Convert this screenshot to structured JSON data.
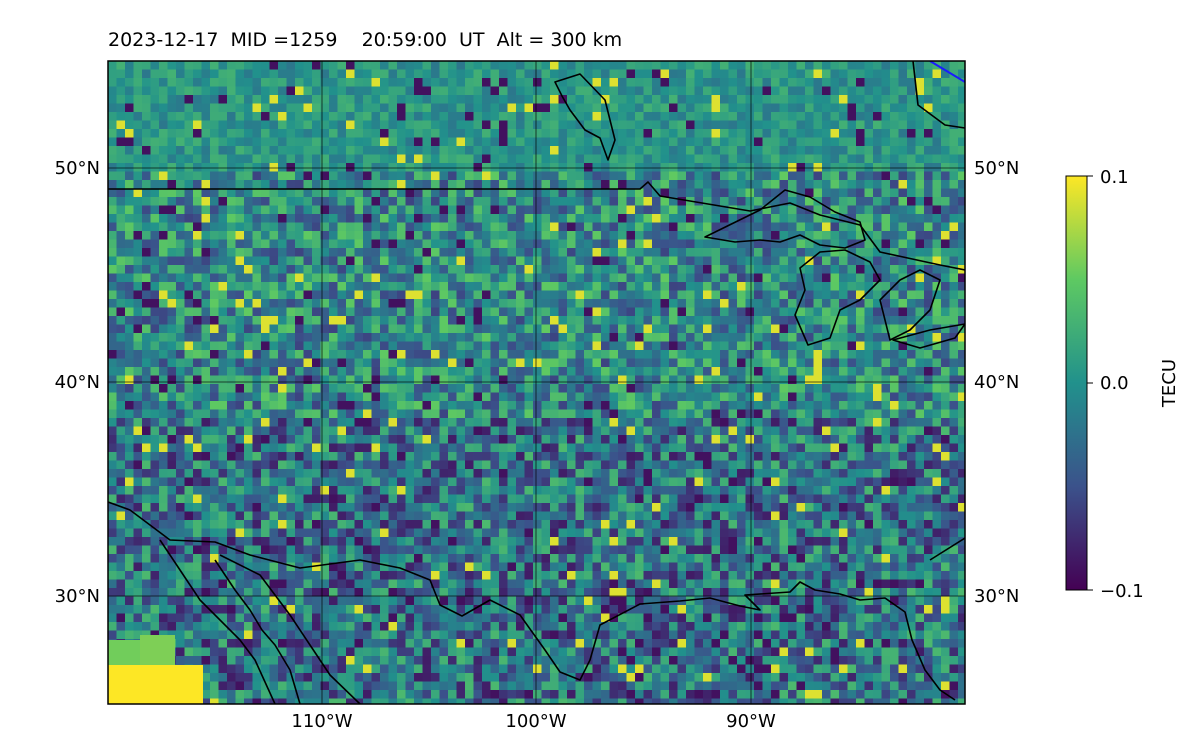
{
  "title": "2023-12-17  MID =1259    20:59:00  UT  Alt = 300 km",
  "map": {
    "lon_range": [
      -120,
      -80
    ],
    "lat_range": [
      25,
      55
    ],
    "lon_ticks": [
      {
        "value": -110,
        "label": "110°W"
      },
      {
        "value": -100,
        "label": "100°W"
      },
      {
        "value": -90,
        "label": "90°W"
      }
    ],
    "lat_ticks": [
      {
        "value": 50,
        "label": "50°N"
      },
      {
        "value": 40,
        "label": "40°N"
      },
      {
        "value": 30,
        "label": "30°N"
      }
    ],
    "field": "TEC perturbation (noisy grid, ~ -0.1 to 0.1 TECU)"
  },
  "colorbar": {
    "label": "TECU",
    "vmin": -0.1,
    "vmax": 0.1,
    "tick_labels": [
      "0.1",
      "0.0",
      "−0.1"
    ],
    "colormap": [
      "#440154",
      "#3b528b",
      "#21918c",
      "#5ec962",
      "#fde725"
    ]
  },
  "chart_data": {
    "type": "heatmap",
    "title": "2023-12-17  MID =1259    20:59:00  UT  Alt = 300 km",
    "xlabel": "",
    "ylabel": "",
    "xlim": [
      -120,
      -80
    ],
    "ylim": [
      25,
      55
    ],
    "x_ticks": [
      "110°W",
      "100°W",
      "90°W"
    ],
    "y_ticks": [
      "50°N",
      "40°N",
      "30°N"
    ],
    "colorbar": {
      "label": "TECU",
      "range": [
        -0.1,
        0.1
      ],
      "ticks": [
        0.1,
        0.0,
        -0.1
      ]
    },
    "grid": true
  }
}
